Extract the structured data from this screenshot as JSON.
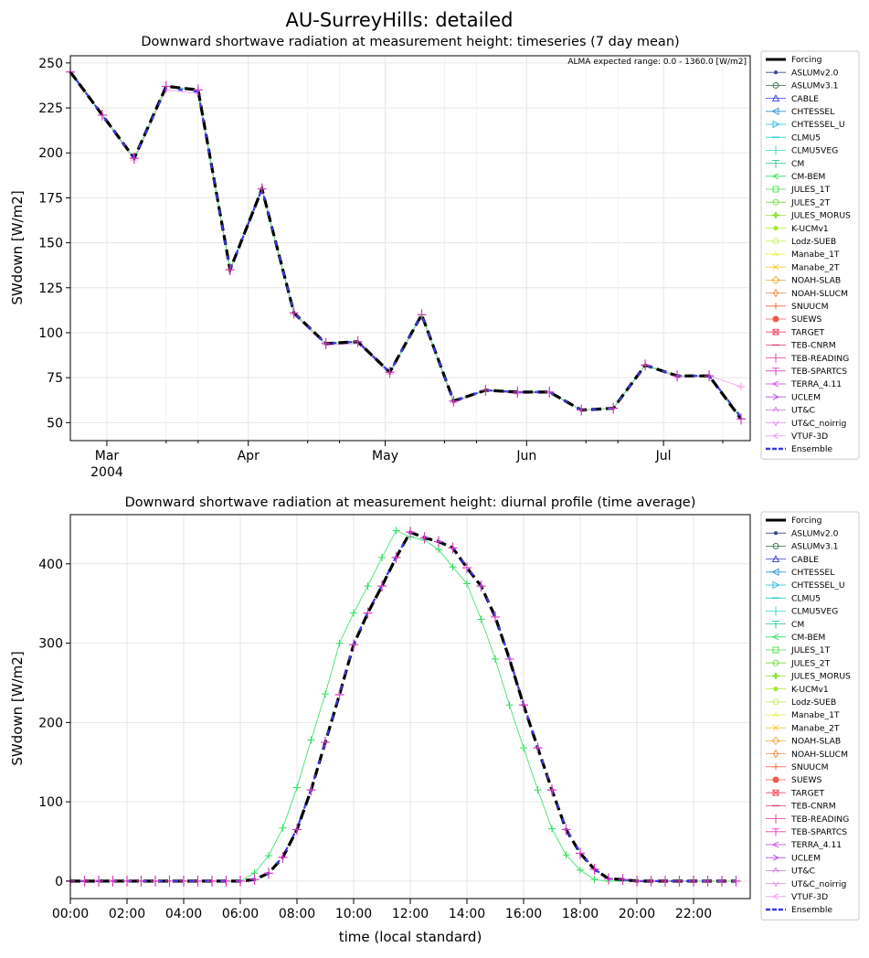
{
  "figure": {
    "suptitle": "AU-SurreyHills: detailed"
  },
  "legend_entries": [
    {
      "name": "Forcing",
      "color": "#000000",
      "marker": "line-thick"
    },
    {
      "name": "ASLUMv2.0",
      "color": "#3a4a8c",
      "marker": "dot"
    },
    {
      "name": "ASLUMv3.1",
      "color": "#2e6b47",
      "marker": "circle"
    },
    {
      "name": "CABLE",
      "color": "#3b3bd6",
      "marker": "triangle-up"
    },
    {
      "name": "CHTESSEL",
      "color": "#2f8fd6",
      "marker": "triangle-left"
    },
    {
      "name": "CHTESSEL_U",
      "color": "#1fb7e0",
      "marker": "triangle-right"
    },
    {
      "name": "CLMU5",
      "color": "#22c9d9",
      "marker": "hline"
    },
    {
      "name": "CLMU5VEG",
      "color": "#2fd6c2",
      "marker": "vline"
    },
    {
      "name": "CM",
      "color": "#25c98a",
      "marker": "tick-down"
    },
    {
      "name": "CM-BEM",
      "color": "#2ee05a",
      "marker": "arrow-left"
    },
    {
      "name": "JULES_1T",
      "color": "#45e045",
      "marker": "square"
    },
    {
      "name": "JULES_2T",
      "color": "#6fdc3a",
      "marker": "hexagon"
    },
    {
      "name": "JULES_MORUS",
      "color": "#8fe03a",
      "marker": "plus-filled"
    },
    {
      "name": "K-UCMv1",
      "color": "#a8e83a",
      "marker": "star"
    },
    {
      "name": "Lodz-SUEB",
      "color": "#c9ef5a",
      "marker": "circle"
    },
    {
      "name": "Manabe_1T",
      "color": "#e6ef3a",
      "marker": "tri-up"
    },
    {
      "name": "Manabe_2T",
      "color": "#f2cc2e",
      "marker": "x"
    },
    {
      "name": "NOAH-SLAB",
      "color": "#f0a830",
      "marker": "diamond"
    },
    {
      "name": "NOAH-SLUCM",
      "color": "#ef8a3c",
      "marker": "thin-diamond"
    },
    {
      "name": "SNUUCM",
      "color": "#ee6d45",
      "marker": "plus"
    },
    {
      "name": "SUEWS",
      "color": "#ef5a4a",
      "marker": "octagon"
    },
    {
      "name": "TARGET",
      "color": "#ee4a5e",
      "marker": "square-x"
    },
    {
      "name": "TEB-CNRM",
      "color": "#e63a7a",
      "marker": "hline"
    },
    {
      "name": "TEB-READING",
      "color": "#e03a9f",
      "marker": "vline"
    },
    {
      "name": "TEB-SPARTCS",
      "color": "#d93ac4",
      "marker": "tick-down"
    },
    {
      "name": "TERRA_4.11",
      "color": "#c93ae0",
      "marker": "arrow-left"
    },
    {
      "name": "UCLEM",
      "color": "#b94ae6",
      "marker": "arrow-right"
    },
    {
      "name": "UT&C",
      "color": "#d36ee8",
      "marker": "arrow-up"
    },
    {
      "name": "UT&C_noirrig",
      "color": "#e08aef",
      "marker": "arrow-down"
    },
    {
      "name": "VTUF-3D",
      "color": "#ee9aef",
      "marker": "arrow-left"
    },
    {
      "name": "Ensemble",
      "color": "#3a3ae6",
      "marker": "dashed"
    }
  ],
  "chart_data": [
    {
      "type": "line",
      "title": "Downward shortwave radiation at measurement height: timeseries (7 day mean)",
      "annotation": "ALMA expected range: 0.0 - 1360.0 [W/m2]",
      "xlabel": "",
      "ylabel": "SWdown [W/m2]",
      "xlim": [
        "2004-02-22",
        "2004-07-20"
      ],
      "ylim": [
        40,
        254
      ],
      "yticks": [
        50,
        75,
        100,
        125,
        150,
        175,
        200,
        225,
        250
      ],
      "xticks": [
        {
          "date": "2004-03-01",
          "label": "Mar",
          "sublabel": "2004"
        },
        {
          "date": "2004-04-01",
          "label": "Apr",
          "sublabel": ""
        },
        {
          "date": "2004-05-01",
          "label": "May",
          "sublabel": ""
        },
        {
          "date": "2004-06-01",
          "label": "Jun",
          "sublabel": ""
        },
        {
          "date": "2004-07-01",
          "label": "Jul",
          "sublabel": ""
        }
      ],
      "minor_xticks": [
        "2004-03-14",
        "2004-03-21",
        "2004-04-14",
        "2004-04-21",
        "2004-05-14",
        "2004-05-21",
        "2004-06-14",
        "2004-06-21",
        "2004-07-14"
      ],
      "grid": true,
      "legend_placement": "outside-right",
      "x": [
        "2004-02-22",
        "2004-02-29",
        "2004-03-07",
        "2004-03-14",
        "2004-03-21",
        "2004-03-28",
        "2004-04-04",
        "2004-04-11",
        "2004-04-18",
        "2004-04-25",
        "2004-05-02",
        "2004-05-09",
        "2004-05-16",
        "2004-05-23",
        "2004-05-30",
        "2004-06-06",
        "2004-06-13",
        "2004-06-20",
        "2004-06-27",
        "2004-07-04",
        "2004-07-11",
        "2004-07-18"
      ],
      "series": [
        {
          "name": "Forcing",
          "values": [
            245,
            221,
            197,
            237,
            235,
            135,
            180,
            111,
            94,
            95,
            78,
            110,
            62,
            68,
            67,
            67,
            57,
            58,
            82,
            76,
            76,
            52
          ]
        },
        {
          "name": "Ensemble",
          "values": [
            245,
            221,
            197,
            236,
            234,
            135,
            180,
            111,
            94,
            95,
            78,
            110,
            62,
            68,
            67,
            67,
            57,
            58,
            82,
            76,
            76,
            53
          ]
        },
        {
          "name": "VTUF-3D",
          "values": [
            245,
            221,
            196,
            235,
            233,
            135,
            180,
            110,
            93,
            94,
            77,
            110,
            61,
            68,
            66,
            67,
            57,
            58,
            82,
            75,
            76,
            70
          ]
        },
        {
          "name": "CM-BEM",
          "values": [
            245,
            221,
            197,
            237,
            235,
            135,
            180,
            111,
            94,
            95,
            78,
            110,
            62,
            68,
            67,
            67,
            57,
            58,
            82,
            76,
            76,
            52
          ]
        }
      ]
    },
    {
      "type": "line",
      "title": "Downward shortwave radiation at measurement height: diurnal profile (time average)",
      "xlabel": "time (local standard)",
      "ylabel": "SWdown [W/m2]",
      "xlim": [
        0,
        24
      ],
      "ylim": [
        -22,
        462
      ],
      "yticks": [
        0,
        100,
        200,
        300,
        400
      ],
      "xticks": [
        {
          "hour": 0,
          "label": "00:00"
        },
        {
          "hour": 2,
          "label": "02:00"
        },
        {
          "hour": 4,
          "label": "04:00"
        },
        {
          "hour": 6,
          "label": "06:00"
        },
        {
          "hour": 8,
          "label": "08:00"
        },
        {
          "hour": 10,
          "label": "10:00"
        },
        {
          "hour": 12,
          "label": "12:00"
        },
        {
          "hour": 14,
          "label": "14:00"
        },
        {
          "hour": 16,
          "label": "16:00"
        },
        {
          "hour": 18,
          "label": "18:00"
        },
        {
          "hour": 20,
          "label": "20:00"
        },
        {
          "hour": 22,
          "label": "22:00"
        }
      ],
      "grid": true,
      "legend_placement": "outside-right",
      "x": [
        0,
        0.5,
        1,
        1.5,
        2,
        2.5,
        3,
        3.5,
        4,
        4.5,
        5,
        5.5,
        6,
        6.5,
        7,
        7.5,
        8,
        8.5,
        9,
        9.5,
        10,
        10.5,
        11,
        11.5,
        12,
        12.5,
        13,
        13.5,
        14,
        14.5,
        15,
        15.5,
        16,
        16.5,
        17,
        17.5,
        18,
        18.5,
        19,
        19.5,
        20,
        20.5,
        21,
        21.5,
        22,
        22.5,
        23,
        23.5
      ],
      "series": [
        {
          "name": "Forcing",
          "values": [
            0,
            0,
            0,
            0,
            0,
            0,
            0,
            0,
            0,
            0,
            0,
            0,
            0,
            2,
            10,
            30,
            65,
            115,
            175,
            235,
            298,
            338,
            372,
            408,
            440,
            433,
            428,
            420,
            395,
            372,
            333,
            280,
            222,
            168,
            115,
            65,
            35,
            15,
            3,
            2,
            0,
            0,
            0,
            0,
            0,
            0,
            0,
            0
          ]
        },
        {
          "name": "Ensemble",
          "values": [
            0,
            0,
            0,
            0,
            0,
            0,
            0,
            0,
            0,
            0,
            0,
            0,
            0,
            2,
            10,
            31,
            66,
            116,
            176,
            236,
            299,
            339,
            373,
            409,
            440,
            434,
            429,
            421,
            396,
            373,
            334,
            281,
            223,
            169,
            116,
            66,
            36,
            15,
            3,
            2,
            0,
            0,
            0,
            0,
            0,
            0,
            0,
            0
          ]
        },
        {
          "name": "CM-BEM",
          "values": [
            0,
            0,
            0,
            0,
            0,
            0,
            0,
            0,
            0,
            0,
            0,
            0,
            0,
            10,
            32,
            67,
            118,
            178,
            236,
            300,
            338,
            372,
            408,
            442,
            434,
            430,
            418,
            396,
            375,
            330,
            280,
            222,
            168,
            115,
            66,
            33,
            14,
            2,
            0,
            0,
            0,
            0,
            0,
            0,
            0,
            0,
            0,
            0
          ]
        }
      ]
    }
  ]
}
